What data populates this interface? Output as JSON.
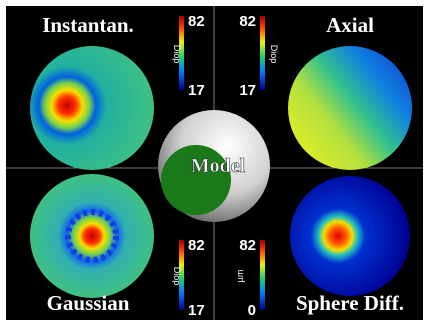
{
  "panels": [
    {
      "title": "Instantan.",
      "scale_max": "82",
      "scale_min": "17",
      "unit": "Diop"
    },
    {
      "title": "Axial",
      "scale_max": "82",
      "scale_min": "17",
      "unit": "Diop"
    },
    {
      "title": "Gaussian",
      "scale_max": "82",
      "scale_min": "17",
      "unit": "Diop"
    },
    {
      "title": "Sphere Diff.",
      "scale_max": "82",
      "scale_min": "0",
      "unit": "µm"
    }
  ],
  "center_label": "Model"
}
